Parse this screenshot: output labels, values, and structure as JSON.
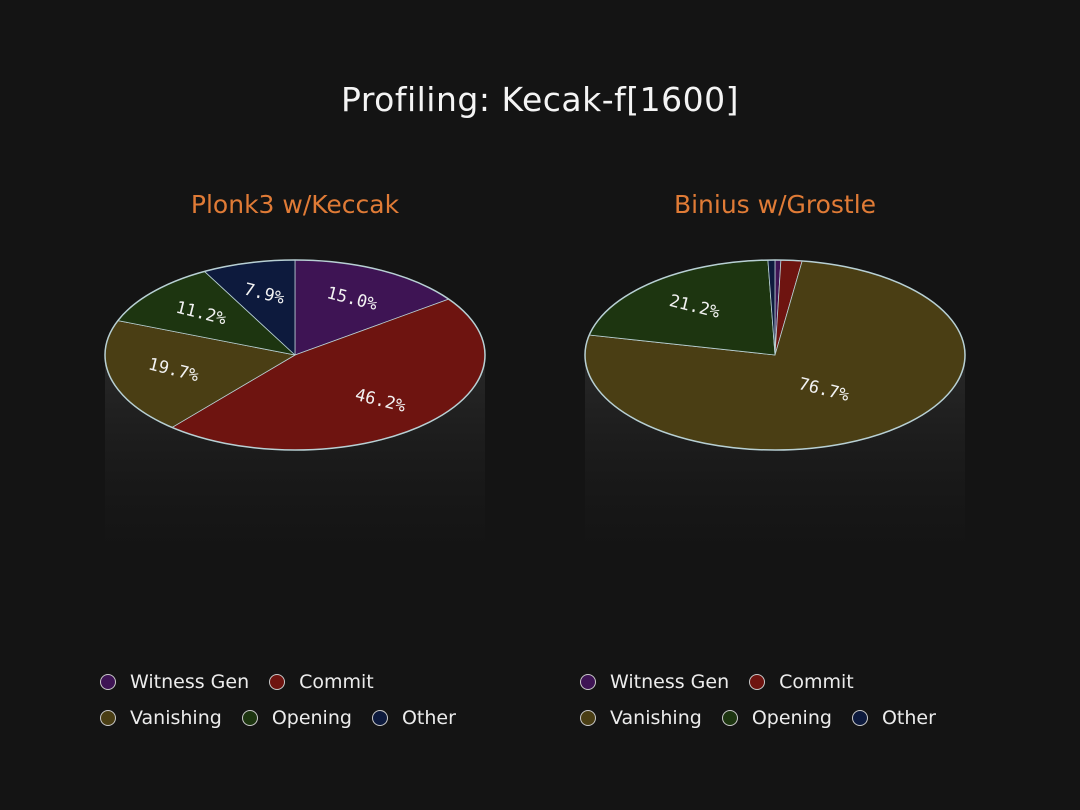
{
  "title": "Profiling: Kecak-f[1600]",
  "colors": {
    "witness_gen": "#3e1454",
    "commit": "#6e1410",
    "vanishing": "#4a3e14",
    "opening": "#1d3510",
    "other": "#0d1a3d",
    "subtitle": "#e07b36",
    "outline": "#b8d0d4"
  },
  "chart_data": [
    {
      "type": "pie",
      "title": "Plonk3 w/Keccak",
      "categories": [
        "Witness Gen",
        "Commit",
        "Vanishing",
        "Opening",
        "Other"
      ],
      "values": [
        15.0,
        46.2,
        19.7,
        11.2,
        7.9
      ],
      "data_labels": [
        "15.0%",
        "46.2%",
        "19.7%",
        "11.2%",
        "7.9%"
      ],
      "legend": [
        [
          "Witness Gen",
          "Commit"
        ],
        [
          "Vanishing",
          "Opening",
          "Other"
        ]
      ]
    },
    {
      "type": "pie",
      "title": "Binius w/Grostle",
      "categories": [
        "Witness Gen",
        "Commit",
        "Vanishing",
        "Opening",
        "Other"
      ],
      "values": [
        0.5,
        1.8,
        76.7,
        21.2,
        0.6
      ],
      "data_labels": [
        "",
        "",
        "76.7%",
        "21.2%",
        ""
      ],
      "legend": [
        [
          "Witness Gen",
          "Commit"
        ],
        [
          "Vanishing",
          "Opening",
          "Other"
        ]
      ]
    }
  ]
}
